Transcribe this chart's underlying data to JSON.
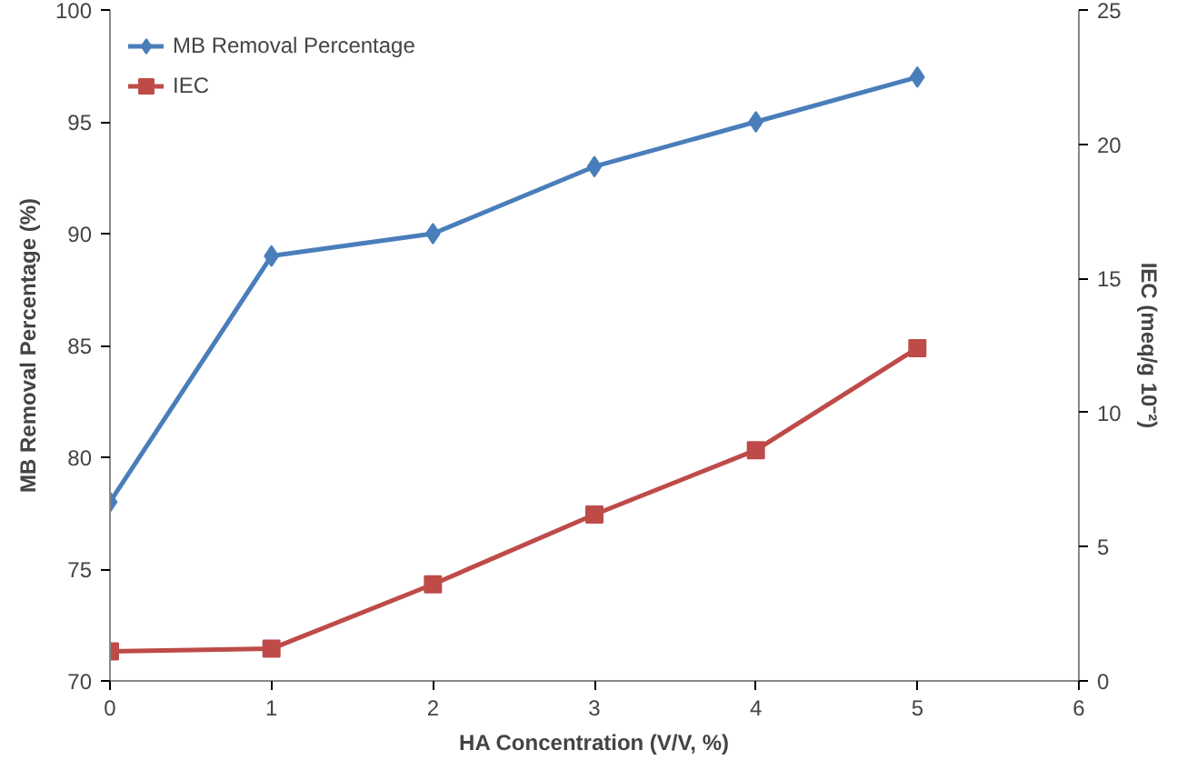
{
  "chart_data": {
    "type": "line",
    "xlabel": "HA Concentration (V/V, %)",
    "ylabel": "MB Removal Percentage (%)",
    "y2label": "IEC (meq/g 10⁻²)",
    "x": [
      0,
      1,
      2,
      3,
      4,
      5
    ],
    "xlim": [
      0,
      6
    ],
    "xticks": [
      0,
      1,
      2,
      3,
      4,
      5,
      6
    ],
    "ylim": [
      70,
      100
    ],
    "yticks": [
      70,
      75,
      80,
      85,
      90,
      95,
      100
    ],
    "y2lim": [
      0,
      25
    ],
    "y2ticks": [
      0,
      5,
      10,
      15,
      20,
      25
    ],
    "series": [
      {
        "name": "MB Removal Percentage",
        "color": "#4a7ebb",
        "marker": "diamond",
        "values": [
          78,
          89,
          90,
          93,
          95,
          97
        ]
      },
      {
        "name": "IEC",
        "color": "#be4b48",
        "marker": "square",
        "axis": "y2",
        "values": [
          1.1,
          1.2,
          3.6,
          6.2,
          8.6,
          12.4
        ]
      }
    ],
    "grid": false,
    "legend": "top left",
    "line_style": "solid"
  }
}
